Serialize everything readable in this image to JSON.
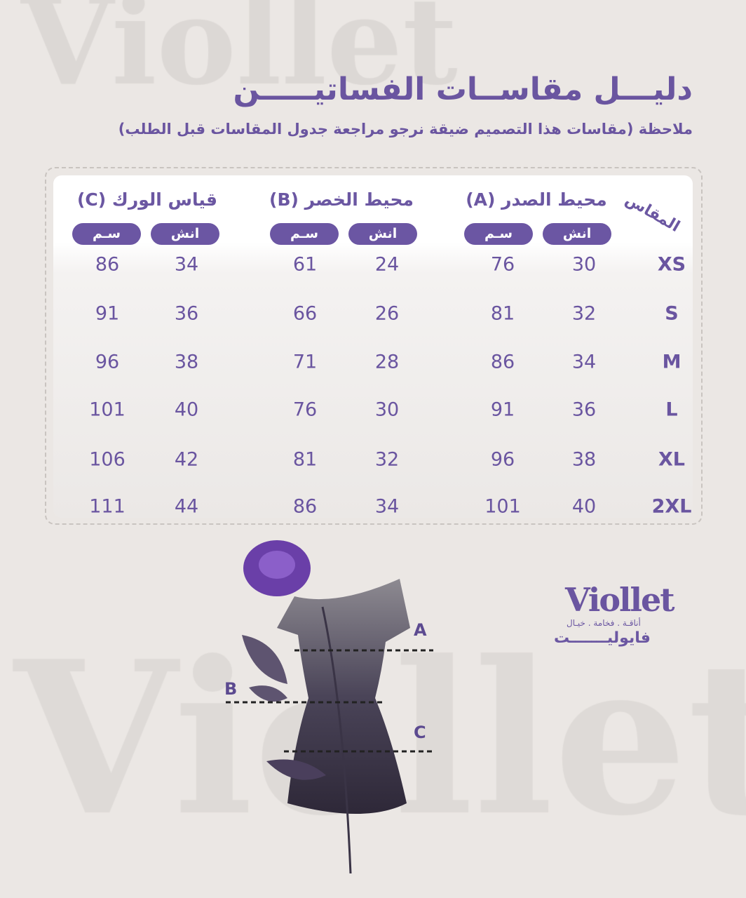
{
  "watermark": "Viollet",
  "title": "دليـــل مقاســات الفساتيـــــن",
  "note": "ملاحظة (مقاسات هذا التصميم ضيقة نرجو مراجعة جدول المقاسات قبل الطلب)",
  "table": {
    "size_header": "المقاس",
    "groups": [
      {
        "label": "محيط الصدر (A)",
        "inch": "انش",
        "cm": "سـم"
      },
      {
        "label": "محيط الخصر (B)",
        "inch": "انش",
        "cm": "سـم"
      },
      {
        "label": "قياس الورك (C)",
        "inch": "انش",
        "cm": "سـم"
      }
    ],
    "rows": [
      {
        "size": "XS",
        "a_in": "30",
        "a_cm": "76",
        "b_in": "24",
        "b_cm": "61",
        "c_in": "34",
        "c_cm": "86"
      },
      {
        "size": "S",
        "a_in": "32",
        "a_cm": "81",
        "b_in": "26",
        "b_cm": "66",
        "c_in": "36",
        "c_cm": "91"
      },
      {
        "size": "M",
        "a_in": "34",
        "a_cm": "86",
        "b_in": "28",
        "b_cm": "71",
        "c_in": "38",
        "c_cm": "96"
      },
      {
        "size": "L",
        "a_in": "36",
        "a_cm": "91",
        "b_in": "30",
        "b_cm": "76",
        "c_in": "40",
        "c_cm": "101"
      },
      {
        "size": "XL",
        "a_in": "38",
        "a_cm": "96",
        "b_in": "32",
        "b_cm": "81",
        "c_in": "42",
        "c_cm": "106"
      },
      {
        "size": "2XL",
        "a_in": "40",
        "a_cm": "101",
        "b_in": "34",
        "b_cm": "86",
        "c_in": "44",
        "c_cm": "111"
      }
    ]
  },
  "illustration": {
    "labels": {
      "a": "A",
      "b": "B",
      "c": "C"
    }
  },
  "brand": {
    "logo": "Viollet",
    "tagline": "أناقـة . فخامة . خيـال",
    "arabic_name": "فايوليـــــــت"
  },
  "colors": {
    "accent": "#6b56a3",
    "background": "#ebe7e4"
  }
}
